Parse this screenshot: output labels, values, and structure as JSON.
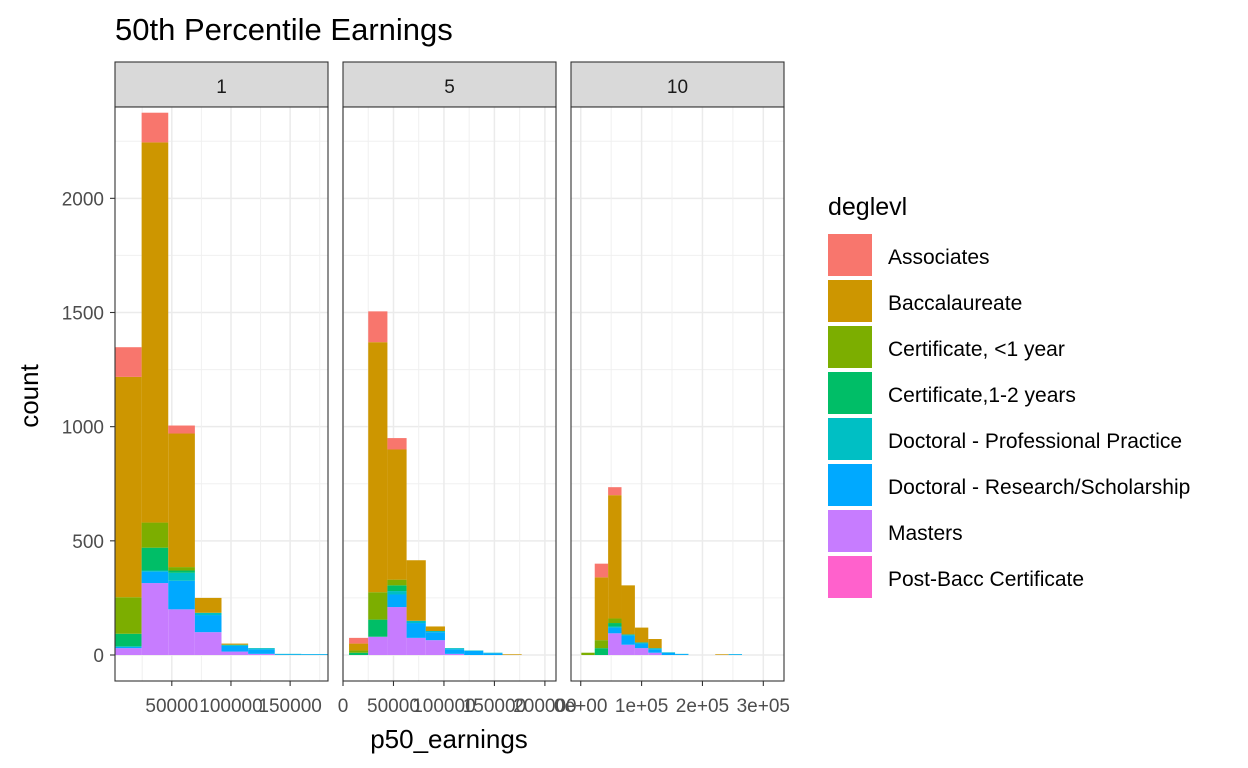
{
  "chart_data": {
    "type": "bar",
    "subtype": "faceted stacked histogram",
    "title": "50th Percentile Earnings",
    "xlabel": "p50_earnings",
    "ylabel": "count",
    "ylim": [
      0,
      2400
    ],
    "y_ticks": [
      0,
      500,
      1000,
      1500,
      2000
    ],
    "grid": true,
    "legend": {
      "title": "deglevl",
      "position": "right",
      "entries": [
        {
          "name": "Associates",
          "color": "#F8766D"
        },
        {
          "name": "Baccalaureate",
          "color": "#CD9600"
        },
        {
          "name": "Certificate, <1 year",
          "color": "#7CAE00"
        },
        {
          "name": "Certificate,1-2 years",
          "color": "#00BE67"
        },
        {
          "name": "Doctoral - Professional Practice",
          "color": "#00BFC4"
        },
        {
          "name": "Doctoral - Research/Scholarship",
          "color": "#00A9FF"
        },
        {
          "name": "Masters",
          "color": "#C77CFF"
        },
        {
          "name": "Post-Bacc Certificate",
          "color": "#FF61CC"
        }
      ]
    },
    "stack_order": [
      "Masters",
      "Doctoral - Research/Scholarship",
      "Doctoral - Professional Practice",
      "Certificate,1-2 years",
      "Certificate, <1 year",
      "Baccalaureate",
      "Associates",
      "Post-Bacc Certificate"
    ],
    "panels": [
      {
        "strip": "1",
        "xlim": [
          2000,
          182000
        ],
        "x_ticks": [
          {
            "value": 50000,
            "label": "50000"
          },
          {
            "value": 100000,
            "label": "100000"
          },
          {
            "value": 150000,
            "label": "150000"
          }
        ],
        "bins": [
          {
            "x0": 2000,
            "x1": 24500,
            "counts": {
              "Masters": 30,
              "Doctoral - Research/Scholarship": 5,
              "Doctoral - Professional Practice": 3,
              "Certificate,1-2 years": 55,
              "Certificate, <1 year": 160,
              "Baccalaureate": 965,
              "Associates": 130
            }
          },
          {
            "x0": 24500,
            "x1": 47000,
            "counts": {
              "Masters": 315,
              "Doctoral - Research/Scholarship": 50,
              "Doctoral - Professional Practice": 5,
              "Certificate,1-2 years": 100,
              "Certificate, <1 year": 110,
              "Baccalaureate": 1665,
              "Associates": 130
            }
          },
          {
            "x0": 47000,
            "x1": 69500,
            "counts": {
              "Masters": 200,
              "Doctoral - Research/Scholarship": 125,
              "Doctoral - Professional Practice": 35,
              "Certificate,1-2 years": 10,
              "Certificate, <1 year": 15,
              "Baccalaureate": 585,
              "Associates": 35
            }
          },
          {
            "x0": 69500,
            "x1": 92000,
            "counts": {
              "Masters": 100,
              "Doctoral - Research/Scholarship": 75,
              "Doctoral - Professional Practice": 10,
              "Certificate,1-2 years": 0,
              "Certificate, <1 year": 0,
              "Baccalaureate": 65,
              "Associates": 0
            }
          },
          {
            "x0": 92000,
            "x1": 114500,
            "counts": {
              "Masters": 15,
              "Doctoral - Research/Scholarship": 25,
              "Doctoral - Professional Practice": 5,
              "Certificate,1-2 years": 0,
              "Certificate, <1 year": 0,
              "Baccalaureate": 5,
              "Associates": 0
            }
          },
          {
            "x0": 114500,
            "x1": 137000,
            "counts": {
              "Masters": 5,
              "Doctoral - Research/Scholarship": 20,
              "Doctoral - Professional Practice": 5,
              "Certificate,1-2 years": 0,
              "Certificate, <1 year": 0,
              "Baccalaureate": 0,
              "Associates": 0
            }
          },
          {
            "x0": 137000,
            "x1": 159500,
            "counts": {
              "Masters": 0,
              "Doctoral - Research/Scholarship": 3,
              "Doctoral - Professional Practice": 2,
              "Certificate,1-2 years": 0,
              "Certificate, <1 year": 0,
              "Baccalaureate": 0,
              "Associates": 0
            }
          },
          {
            "x0": 159500,
            "x1": 182000,
            "counts": {
              "Masters": 0,
              "Doctoral - Research/Scholarship": 3,
              "Doctoral - Professional Practice": 1,
              "Certificate,1-2 years": 0,
              "Certificate, <1 year": 0,
              "Baccalaureate": 0,
              "Associates": 0
            }
          }
        ]
      },
      {
        "strip": "5",
        "xlim": [
          0,
          211000
        ],
        "x_ticks": [
          {
            "value": 0,
            "label": "0"
          },
          {
            "value": 50000,
            "label": "50000"
          },
          {
            "value": 100000,
            "label": "100000"
          },
          {
            "value": 150000,
            "label": "150000"
          },
          {
            "value": 200000,
            "label": "200000"
          }
        ],
        "bins": [
          {
            "x0": 6000,
            "x1": 25000,
            "counts": {
              "Masters": 0,
              "Doctoral - Research/Scholarship": 0,
              "Doctoral - Professional Practice": 0,
              "Certificate,1-2 years": 10,
              "Certificate, <1 year": 10,
              "Baccalaureate": 30,
              "Associates": 25
            }
          },
          {
            "x0": 25000,
            "x1": 44000,
            "counts": {
              "Masters": 80,
              "Doctoral - Research/Scholarship": 0,
              "Doctoral - Professional Practice": 0,
              "Certificate,1-2 years": 75,
              "Certificate, <1 year": 120,
              "Baccalaureate": 1095,
              "Associates": 135
            }
          },
          {
            "x0": 44000,
            "x1": 63000,
            "counts": {
              "Masters": 210,
              "Doctoral - Research/Scholarship": 55,
              "Doctoral - Professional Practice": 15,
              "Certificate,1-2 years": 25,
              "Certificate, <1 year": 25,
              "Baccalaureate": 570,
              "Associates": 50
            }
          },
          {
            "x0": 63000,
            "x1": 82000,
            "counts": {
              "Masters": 75,
              "Doctoral - Research/Scholarship": 65,
              "Doctoral - Professional Practice": 10,
              "Certificate,1-2 years": 0,
              "Certificate, <1 year": 0,
              "Baccalaureate": 265,
              "Associates": 0
            }
          },
          {
            "x0": 82000,
            "x1": 101000,
            "counts": {
              "Masters": 65,
              "Doctoral - Research/Scholarship": 35,
              "Doctoral - Professional Practice": 5,
              "Certificate,1-2 years": 0,
              "Certificate, <1 year": 0,
              "Baccalaureate": 20,
              "Associates": 0
            }
          },
          {
            "x0": 101000,
            "x1": 120000,
            "counts": {
              "Masters": 5,
              "Doctoral - Research/Scholarship": 20,
              "Doctoral - Professional Practice": 5,
              "Certificate,1-2 years": 0,
              "Certificate, <1 year": 0,
              "Baccalaureate": 0,
              "Associates": 0
            }
          },
          {
            "x0": 120000,
            "x1": 139000,
            "counts": {
              "Masters": 0,
              "Doctoral - Research/Scholarship": 18,
              "Doctoral - Professional Practice": 2,
              "Certificate,1-2 years": 0,
              "Certificate, <1 year": 0,
              "Baccalaureate": 0,
              "Associates": 0
            }
          },
          {
            "x0": 139000,
            "x1": 158000,
            "counts": {
              "Masters": 0,
              "Doctoral - Research/Scholarship": 8,
              "Doctoral - Professional Practice": 2,
              "Certificate,1-2 years": 0,
              "Certificate, <1 year": 0,
              "Baccalaureate": 0,
              "Associates": 0
            }
          },
          {
            "x0": 158000,
            "x1": 177000,
            "counts": {
              "Masters": 0,
              "Doctoral - Research/Scholarship": 0,
              "Doctoral - Professional Practice": 0,
              "Certificate,1-2 years": 0,
              "Certificate, <1 year": 0,
              "Baccalaureate": 3,
              "Associates": 0
            }
          }
        ]
      },
      {
        "strip": "10",
        "xlim": [
          -16000,
          334000
        ],
        "x_ticks": [
          {
            "value": 0,
            "label": "0e+00"
          },
          {
            "value": 100000,
            "label": "1e+05"
          },
          {
            "value": 200000,
            "label": "2e+05"
          },
          {
            "value": 300000,
            "label": "3e+05"
          }
        ],
        "bins": [
          {
            "x0": 1000,
            "x1": 23000,
            "counts": {
              "Masters": 0,
              "Doctoral - Research/Scholarship": 0,
              "Doctoral - Professional Practice": 0,
              "Certificate,1-2 years": 0,
              "Certificate, <1 year": 10,
              "Baccalaureate": 0,
              "Associates": 0
            }
          },
          {
            "x0": 23000,
            "x1": 45000,
            "counts": {
              "Masters": 0,
              "Doctoral - Research/Scholarship": 0,
              "Doctoral - Professional Practice": 0,
              "Certificate,1-2 years": 30,
              "Certificate, <1 year": 35,
              "Baccalaureate": 275,
              "Associates": 60
            }
          },
          {
            "x0": 45000,
            "x1": 67000,
            "counts": {
              "Masters": 95,
              "Doctoral - Research/Scholarship": 25,
              "Doctoral - Professional Practice": 5,
              "Certificate,1-2 years": 15,
              "Certificate, <1 year": 20,
              "Baccalaureate": 540,
              "Associates": 35
            }
          },
          {
            "x0": 67000,
            "x1": 89000,
            "counts": {
              "Masters": 45,
              "Doctoral - Research/Scholarship": 40,
              "Doctoral - Professional Practice": 5,
              "Certificate,1-2 years": 0,
              "Certificate, <1 year": 0,
              "Baccalaureate": 215,
              "Associates": 0
            }
          },
          {
            "x0": 89000,
            "x1": 111000,
            "counts": {
              "Masters": 30,
              "Doctoral - Research/Scholarship": 20,
              "Doctoral - Professional Practice": 5,
              "Certificate,1-2 years": 0,
              "Certificate, <1 year": 0,
              "Baccalaureate": 65,
              "Associates": 0
            }
          },
          {
            "x0": 111000,
            "x1": 133000,
            "counts": {
              "Masters": 10,
              "Doctoral - Research/Scholarship": 15,
              "Doctoral - Professional Practice": 5,
              "Certificate,1-2 years": 0,
              "Certificate, <1 year": 0,
              "Baccalaureate": 40,
              "Associates": 0
            }
          },
          {
            "x0": 133000,
            "x1": 155000,
            "counts": {
              "Masters": 0,
              "Doctoral - Research/Scholarship": 10,
              "Doctoral - Professional Practice": 2,
              "Certificate,1-2 years": 0,
              "Certificate, <1 year": 0,
              "Baccalaureate": 0,
              "Associates": 0
            }
          },
          {
            "x0": 155000,
            "x1": 177000,
            "counts": {
              "Masters": 0,
              "Doctoral - Research/Scholarship": 4,
              "Doctoral - Professional Practice": 1,
              "Certificate,1-2 years": 0,
              "Certificate, <1 year": 0,
              "Baccalaureate": 0,
              "Associates": 0
            }
          },
          {
            "x0": 221000,
            "x1": 243000,
            "counts": {
              "Masters": 0,
              "Doctoral - Research/Scholarship": 0,
              "Doctoral - Professional Practice": 0,
              "Certificate,1-2 years": 0,
              "Certificate, <1 year": 0,
              "Baccalaureate": 3,
              "Associates": 0
            }
          },
          {
            "x0": 243000,
            "x1": 265000,
            "counts": {
              "Masters": 0,
              "Doctoral - Research/Scholarship": 3,
              "Doctoral - Professional Practice": 1,
              "Certificate,1-2 years": 0,
              "Certificate, <1 year": 0,
              "Baccalaureate": 0,
              "Associates": 0
            }
          }
        ]
      }
    ]
  }
}
